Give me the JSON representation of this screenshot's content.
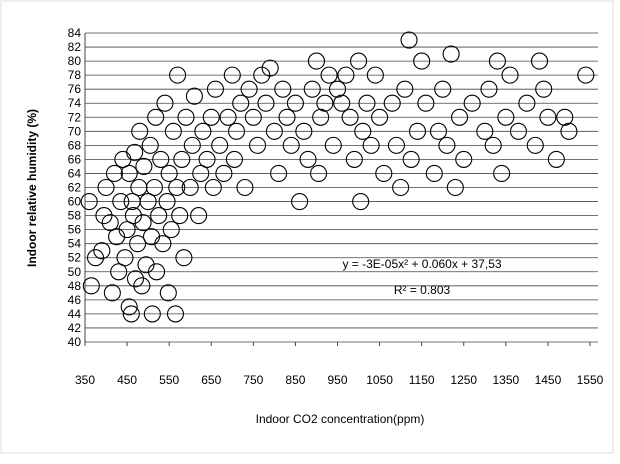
{
  "chart_data": {
    "type": "scatter",
    "y_label": "Indoor relative humidity (%)",
    "x_label": "Indoor CO2 concentration(ppm)",
    "annotations": [
      "y = -3E-05x² + 0.060x + 37,53",
      "R² = 0.803"
    ],
    "xlim": [
      350,
      1550
    ],
    "xticks": [
      350,
      450,
      550,
      650,
      750,
      850,
      950,
      1050,
      1150,
      1250,
      1350,
      1450,
      1550
    ],
    "ylim": [
      40,
      84
    ],
    "yticks": [
      40,
      42,
      44,
      46,
      48,
      50,
      52,
      54,
      56,
      58,
      60,
      62,
      64,
      66,
      68,
      70,
      72,
      74,
      76,
      78,
      80,
      82,
      84
    ],
    "grid": true,
    "color": "#000000",
    "x": [
      360,
      365,
      375,
      390,
      395,
      400,
      410,
      415,
      420,
      425,
      430,
      435,
      440,
      445,
      450,
      455,
      455,
      460,
      462,
      465,
      468,
      470,
      475,
      478,
      480,
      485,
      488,
      490,
      495,
      500,
      505,
      508,
      510,
      515,
      518,
      520,
      525,
      530,
      535,
      540,
      545,
      548,
      550,
      555,
      560,
      565,
      568,
      570,
      575,
      580,
      585,
      590,
      600,
      605,
      610,
      620,
      625,
      630,
      640,
      650,
      655,
      660,
      670,
      680,
      690,
      700,
      705,
      710,
      720,
      730,
      740,
      750,
      760,
      770,
      780,
      790,
      800,
      810,
      820,
      830,
      840,
      850,
      860,
      870,
      880,
      890,
      900,
      905,
      910,
      920,
      930,
      940,
      950,
      960,
      970,
      980,
      990,
      1000,
      1005,
      1010,
      1020,
      1030,
      1040,
      1050,
      1060,
      1080,
      1090,
      1100,
      1110,
      1120,
      1125,
      1140,
      1150,
      1160,
      1180,
      1190,
      1200,
      1210,
      1220,
      1230,
      1240,
      1250,
      1270,
      1300,
      1310,
      1320,
      1330,
      1340,
      1350,
      1360,
      1380,
      1400,
      1420,
      1430,
      1440,
      1450,
      1470,
      1490,
      1500,
      1540
    ],
    "values": [
      60,
      48,
      52,
      53,
      58,
      62,
      57,
      47,
      64,
      55,
      50,
      60,
      66,
      52,
      56,
      64,
      45,
      44,
      60,
      58,
      67,
      49,
      54,
      62,
      70,
      48,
      57,
      65,
      51,
      60,
      68,
      55,
      44,
      62,
      72,
      50,
      58,
      66,
      54,
      74,
      60,
      47,
      64,
      56,
      70,
      44,
      62,
      78,
      58,
      66,
      52,
      72,
      62,
      68,
      75,
      58,
      64,
      70,
      66,
      72,
      62,
      76,
      68,
      64,
      72,
      78,
      66,
      70,
      74,
      62,
      76,
      72,
      68,
      78,
      74,
      79,
      70,
      64,
      76,
      72,
      68,
      74,
      60,
      70,
      66,
      76,
      80,
      64,
      72,
      74,
      78,
      68,
      76,
      74,
      78,
      72,
      66,
      80,
      60,
      70,
      74,
      68,
      78,
      72,
      64,
      74,
      68,
      62,
      76,
      83,
      66,
      70,
      80,
      74,
      64,
      70,
      76,
      68,
      81,
      62,
      72,
      66,
      74,
      70,
      76,
      68,
      80,
      64,
      72,
      78,
      70,
      74,
      68,
      80,
      76,
      72,
      66,
      72,
      70,
      78
    ]
  }
}
